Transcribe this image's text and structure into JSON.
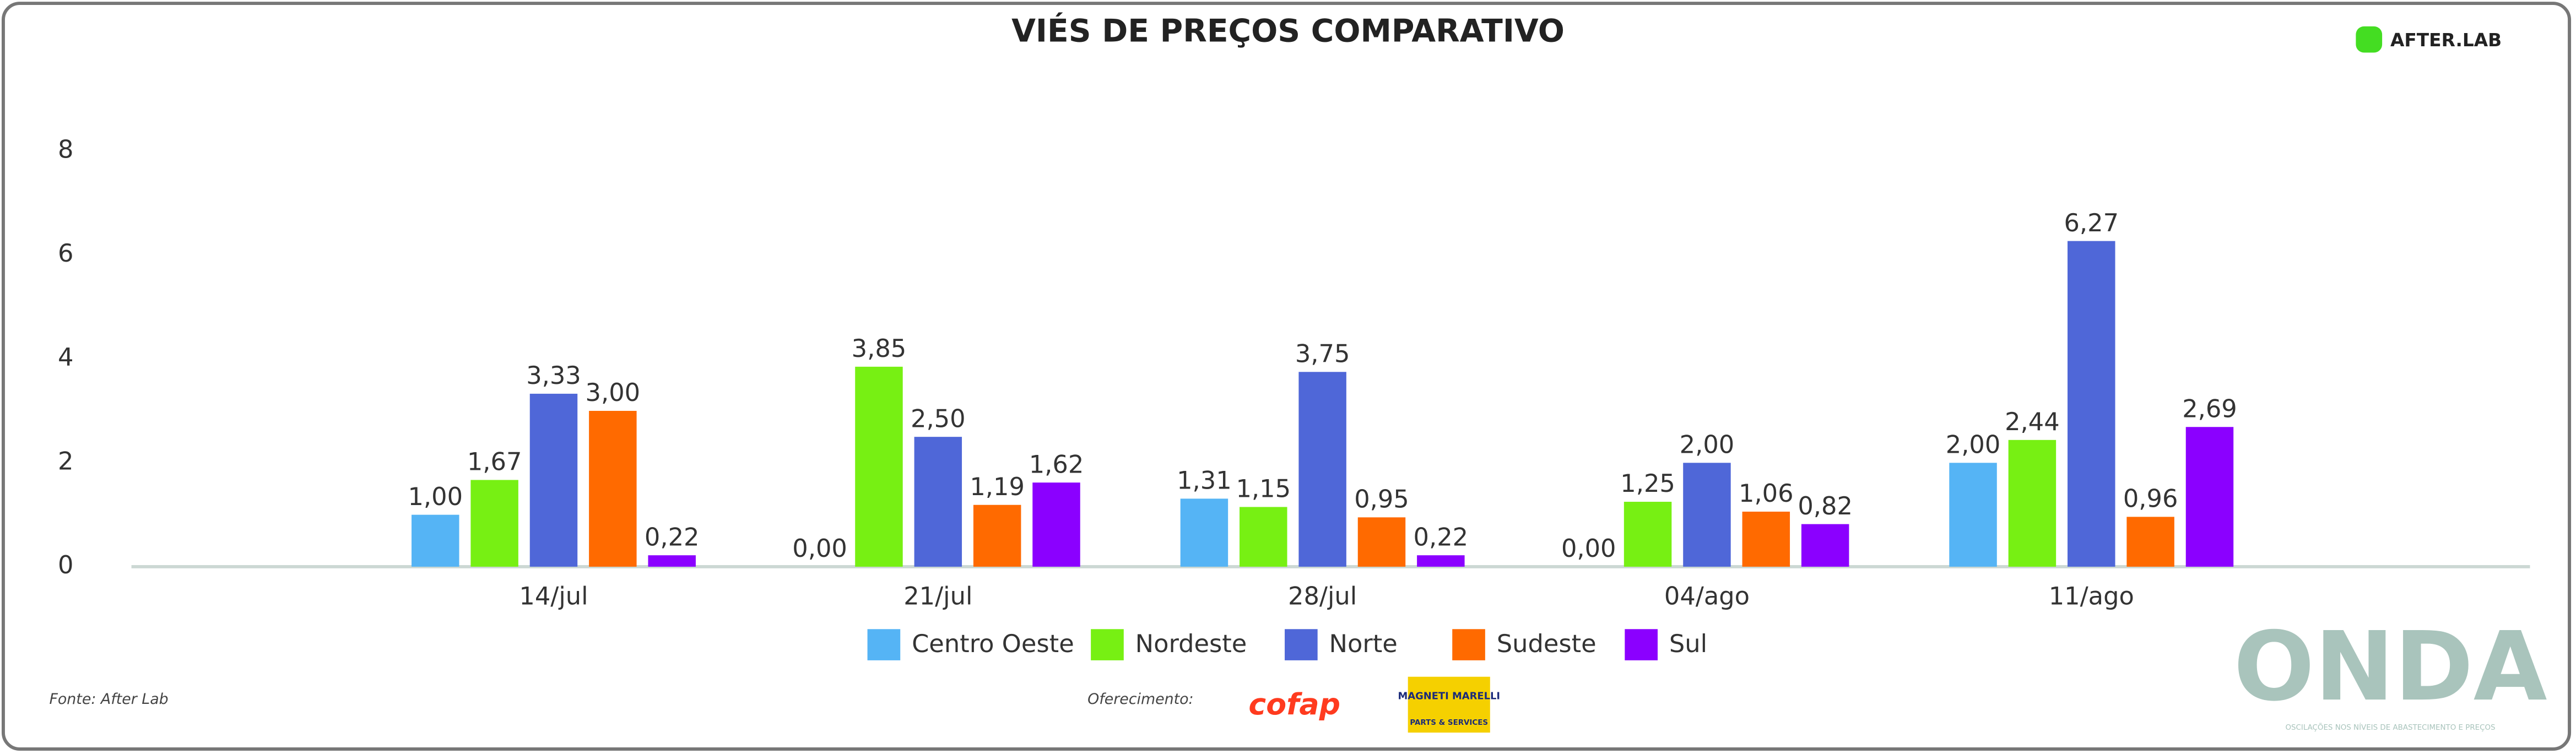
{
  "chart_data": {
    "type": "bar",
    "title": "VIÉS DE PREÇOS COMPARATIVO",
    "categories": [
      "14/jul",
      "21/jul",
      "28/jul",
      "04/ago",
      "11/ago"
    ],
    "series": [
      {
        "name": "Centro Oeste",
        "color": "#55b4f5",
        "values": [
          1.0,
          0.0,
          1.31,
          0.0,
          2.0
        ],
        "value_labels": [
          "1,00",
          "0,00",
          "1,31",
          "0,00",
          "2,00"
        ]
      },
      {
        "name": "Nordeste",
        "color": "#77f013",
        "values": [
          1.67,
          3.85,
          1.15,
          1.25,
          2.44
        ],
        "value_labels": [
          "1,67",
          "3,85",
          "1,15",
          "1,25",
          "2,44"
        ]
      },
      {
        "name": "Norte",
        "color": "#4f67d8",
        "values": [
          3.33,
          2.5,
          3.75,
          2.0,
          6.27
        ],
        "value_labels": [
          "3,33",
          "2,50",
          "3,75",
          "2,00",
          "6,27"
        ]
      },
      {
        "name": "Sudeste",
        "color": "#ff6a00",
        "values": [
          3.0,
          1.19,
          0.95,
          1.06,
          0.96
        ],
        "value_labels": [
          "3,00",
          "1,19",
          "0,95",
          "1,06",
          "0,96"
        ]
      },
      {
        "name": "Sul",
        "color": "#8b00ff",
        "values": [
          0.22,
          1.62,
          0.22,
          0.82,
          2.69
        ],
        "value_labels": [
          "0,22",
          "1,62",
          "0,22",
          "0,82",
          "2,69"
        ]
      }
    ],
    "ylim": [
      0,
      8
    ],
    "yticks": [
      0,
      2,
      4,
      6,
      8
    ],
    "grid": false,
    "source": "Fonte: After Lab",
    "sponsor_label": "Oferecimento:",
    "logo_afterlab": "AFTER.LAB",
    "logo_cofap": "cofap",
    "logo_magneti": "MAGNETI MARELLI",
    "logo_magneti_sub": "PARTS & SERVICES",
    "logo_onda": "ONDA",
    "logo_onda_sub": "OSCILAÇÕES NOS NÍVEIS DE ABASTECIMENTO E PREÇOS"
  }
}
